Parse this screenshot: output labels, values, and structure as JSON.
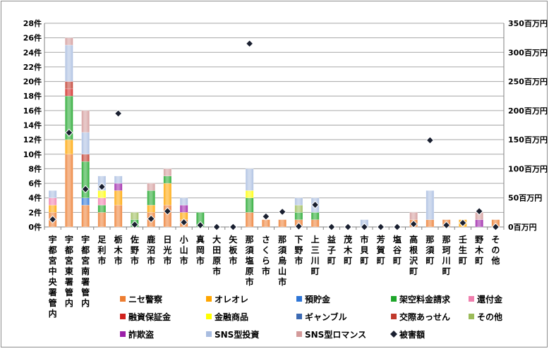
{
  "chart_data": {
    "type": "bar",
    "stacked": true,
    "categories": [
      "宇都宮中央署管内",
      "宇都宮東署管内",
      "宇都宮南署管内",
      "足利市",
      "栃木市",
      "佐野市",
      "鹿沼市",
      "日光市",
      "小山市",
      "真岡市",
      "大田原市",
      "矢板市",
      "那須塩原市",
      "さくら市",
      "那須烏山市",
      "下野市",
      "上三川町",
      "益子町",
      "茂木町",
      "市貝町",
      "芳賀町",
      "塩谷町",
      "高根沢町",
      "那須町",
      "那珂川町",
      "壬生町",
      "野木町",
      "その他"
    ],
    "y_left": {
      "unit": "件",
      "ylim": [
        0,
        28
      ],
      "ticks": [
        "0件",
        "2件",
        "4件",
        "6件",
        "8件",
        "10件",
        "12件",
        "14件",
        "16件",
        "18件",
        "20件",
        "22件",
        "24件",
        "26件",
        "28件"
      ]
    },
    "y_right": {
      "unit": "百万円",
      "ylim": [
        0,
        350
      ],
      "ticks": [
        "0百万円",
        "50百万円",
        "100百万円",
        "150百万円",
        "200百万円",
        "250百万円",
        "300百万円",
        "350百万円"
      ]
    },
    "colors": {
      "ニセ警察": "#ed7d31",
      "オレオレ": "#ffa500",
      "預貯金": "#2e75d6",
      "架空料金請求": "#1ea62a",
      "還付金": "#f07fae",
      "融資保証金": "#d0211d",
      "金融商品": "#ffff00",
      "ギャンブル": "#3c6ab3",
      "交際あっせん": "#c0392b",
      "その他": "#9bbb59",
      "詐欺盗": "#9b1fa8",
      "SNS型投資": "#a9bde0",
      "SNS型ロマンス": "#d39a9a",
      "被害額": "#1a2030"
    },
    "series": [
      {
        "name": "ニセ警察",
        "values": [
          2,
          10,
          3,
          2,
          3,
          0,
          2,
          3,
          1,
          0,
          0,
          0,
          2,
          1,
          1,
          1,
          1,
          0,
          0,
          0,
          0,
          0,
          1,
          1,
          1,
          0,
          0,
          1
        ]
      },
      {
        "name": "オレオレ",
        "values": [
          1,
          2,
          0,
          0,
          2,
          0,
          1,
          3,
          1,
          0,
          0,
          0,
          0,
          0,
          0,
          0,
          0,
          0,
          0,
          0,
          0,
          0,
          0,
          0,
          0,
          1,
          0,
          0
        ]
      },
      {
        "name": "預貯金",
        "values": [
          0,
          0,
          1,
          0,
          0,
          0,
          0,
          0,
          0,
          0,
          0,
          0,
          0,
          0,
          0,
          0,
          0,
          0,
          0,
          0,
          0,
          0,
          0,
          0,
          0,
          0,
          0,
          0
        ]
      },
      {
        "name": "架空料金請求",
        "values": [
          0,
          6,
          5,
          1,
          0,
          1,
          2,
          1,
          0,
          2,
          0,
          0,
          2,
          0,
          0,
          1,
          1,
          0,
          0,
          0,
          0,
          0,
          0,
          0,
          0,
          0,
          0,
          0
        ]
      },
      {
        "name": "還付金",
        "values": [
          1,
          0,
          0,
          1,
          0,
          0,
          0,
          0,
          0,
          0,
          0,
          0,
          0,
          0,
          0,
          0,
          0,
          0,
          0,
          0,
          0,
          0,
          0,
          0,
          0,
          0,
          0,
          0
        ]
      },
      {
        "name": "融資保証金",
        "values": [
          0,
          1,
          0,
          0,
          0,
          0,
          0,
          0,
          0,
          0,
          0,
          0,
          0,
          0,
          0,
          0,
          0,
          0,
          0,
          0,
          0,
          0,
          0,
          0,
          0,
          0,
          0,
          0
        ]
      },
      {
        "name": "金融商品",
        "values": [
          0,
          0,
          0,
          1,
          0,
          0,
          0,
          0,
          0,
          0,
          0,
          0,
          1,
          0,
          0,
          0,
          0,
          0,
          0,
          0,
          0,
          0,
          0,
          0,
          0,
          0,
          0,
          0
        ]
      },
      {
        "name": "ギャンブル",
        "values": [
          0,
          0,
          0,
          0,
          0,
          0,
          0,
          0,
          0,
          0,
          0,
          0,
          0,
          0,
          0,
          0,
          0,
          0,
          0,
          0,
          0,
          0,
          0,
          0,
          0,
          0,
          0,
          0
        ]
      },
      {
        "name": "交際あっせん",
        "values": [
          0,
          1,
          1,
          0,
          0,
          0,
          0,
          0,
          0,
          0,
          0,
          0,
          0,
          0,
          0,
          0,
          0,
          0,
          0,
          0,
          0,
          0,
          0,
          0,
          0,
          0,
          0,
          0
        ]
      },
      {
        "name": "その他",
        "values": [
          0,
          0,
          0,
          0,
          0,
          1,
          0,
          0,
          0,
          0,
          0,
          0,
          0,
          0,
          0,
          1,
          0,
          0,
          0,
          0,
          0,
          0,
          0,
          0,
          0,
          0,
          0,
          0
        ]
      },
      {
        "name": "詐欺盗",
        "values": [
          0,
          0,
          0,
          0,
          1,
          0,
          0,
          0,
          1,
          0,
          0,
          0,
          0,
          0,
          0,
          0,
          0,
          0,
          0,
          0,
          0,
          0,
          0,
          0,
          0,
          0,
          1,
          0
        ]
      },
      {
        "name": "SNS型投資",
        "values": [
          1,
          5,
          3,
          2,
          1,
          0,
          0,
          0,
          1,
          0,
          0,
          0,
          3,
          0,
          0,
          1,
          2,
          0,
          0,
          1,
          0,
          0,
          0,
          4,
          0,
          0,
          0,
          0
        ]
      },
      {
        "name": "SNS型ロマンス",
        "values": [
          0,
          1,
          3,
          0,
          0,
          0,
          1,
          1,
          0,
          0,
          0,
          0,
          0,
          0,
          0,
          0,
          0,
          0,
          0,
          0,
          0,
          0,
          1,
          0,
          0,
          0,
          1,
          0
        ]
      }
    ],
    "damage": {
      "name": "被害額",
      "axis": "right",
      "values": [
        13,
        162,
        65,
        69,
        195,
        4,
        14,
        27,
        8,
        3,
        0,
        0,
        315,
        18,
        26,
        1,
        38,
        0,
        0,
        0,
        0,
        0,
        5,
        149,
        3,
        7,
        27,
        0
      ]
    },
    "legend_placement": "bottom",
    "grid": true
  }
}
